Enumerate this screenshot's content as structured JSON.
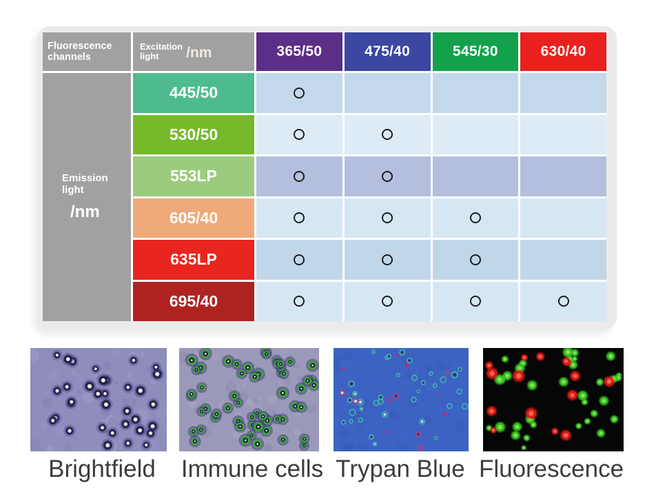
{
  "figure": {
    "panel_bg": "#ebebeb",
    "gap_color": "#ffffff",
    "header_gray": "#a1a1a1"
  },
  "table": {
    "corner": {
      "line1": "Fluorescence",
      "line2": "channels"
    },
    "excitation": {
      "line1": "Excitation",
      "line2": "light",
      "unit": "/nm"
    },
    "emission": {
      "line1": "Emission",
      "line2": "light",
      "unit": "/nm"
    },
    "mark_symbol": "O",
    "mark_color": "#1d1d1d",
    "excitation_channels": [
      {
        "label": "365/50",
        "color": "#5b2e87"
      },
      {
        "label": "475/40",
        "color": "#3b47a1"
      },
      {
        "label": "545/30",
        "color": "#13a24b"
      },
      {
        "label": "630/40",
        "color": "#e9201d"
      }
    ],
    "rows": [
      {
        "label": "445/50",
        "color": "#4ebb8e",
        "row_bg": "#c3d9eb",
        "marks": [
          true,
          false,
          false,
          false
        ]
      },
      {
        "label": "530/50",
        "color": "#74ba2b",
        "row_bg": "#dcebf6",
        "marks": [
          true,
          true,
          false,
          false
        ]
      },
      {
        "label": "553LP",
        "color": "#9ccb7e",
        "row_bg": "#b3bfdd",
        "marks": [
          true,
          true,
          false,
          false
        ]
      },
      {
        "label": "605/40",
        "color": "#f0aa79",
        "row_bg": "#d6e7f4",
        "marks": [
          true,
          true,
          true,
          false
        ]
      },
      {
        "label": "635LP",
        "color": "#e8251e",
        "row_bg": "#c0d7ea",
        "marks": [
          true,
          true,
          true,
          false
        ]
      },
      {
        "label": "695/40",
        "color": "#ae2322",
        "row_bg": "#d6e7f4",
        "marks": [
          true,
          true,
          true,
          true
        ]
      }
    ]
  },
  "chart_data": {
    "type": "table",
    "title": "",
    "column_header": "Excitation light /nm",
    "row_header": "Emission light /nm",
    "columns": [
      "365/50",
      "475/40",
      "545/30",
      "630/40"
    ],
    "rows": [
      "445/50",
      "530/50",
      "553LP",
      "605/40",
      "635LP",
      "695/40"
    ],
    "values": [
      [
        "O",
        "",
        "",
        ""
      ],
      [
        "O",
        "O",
        "",
        ""
      ],
      [
        "O",
        "O",
        "",
        ""
      ],
      [
        "O",
        "O",
        "O",
        ""
      ],
      [
        "O",
        "O",
        "O",
        ""
      ],
      [
        "O",
        "O",
        "O",
        "O"
      ]
    ]
  },
  "specimen_images": [
    {
      "caption": "Brightfield",
      "type": "brightfield",
      "bg": "#8f8dbc",
      "noise": [
        "#a19fca",
        "#817fb0",
        "#9997c3"
      ],
      "halo": "#47468a",
      "cell_body": "#23224e",
      "cell_core": "#f0ead8",
      "cells": 34,
      "seed": 7
    },
    {
      "caption": "Immune cells",
      "type": "immune",
      "bg": "#9b99b9",
      "noise": [
        "#a8a6c0",
        "#8c8aae"
      ],
      "halo": "#3c3c78",
      "ring": "#3ba43a",
      "cell_body": "#20203a",
      "cell_core": "#ffffff",
      "cells": 58,
      "seed": 11
    },
    {
      "caption": "Trypan Blue",
      "type": "trypan",
      "bg": "#3c63c4",
      "noise": [
        "#3559b4",
        "#4169c9"
      ],
      "live_ring": "#43bfa0",
      "dead_ring": "#c23a6a",
      "dot": "#d2254a",
      "core": "#dce8f8",
      "cells": 42,
      "seed": 23
    },
    {
      "caption": "Fluorescence",
      "type": "fluor",
      "bg": "#060606",
      "green": "#35c81e",
      "green_core": "#8ae05f",
      "red": "#e01c14",
      "red_core": "#ff6355",
      "green_count": 34,
      "red_count": 15,
      "seed": 5
    }
  ]
}
